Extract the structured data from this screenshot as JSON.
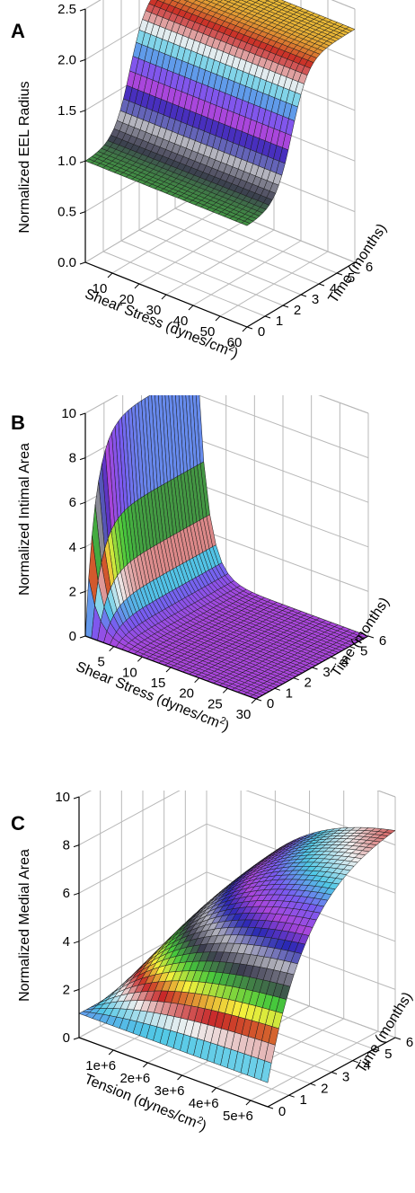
{
  "chart_data": [
    {
      "panel_label": "A",
      "type": "surface",
      "zlabel": "Normalized EEL Radius",
      "xlabel": "Shear Stress (dynes/cm",
      "xlabel_sup": "2",
      "xlabel_close": ")",
      "ylabel": "Time (months)",
      "x_ticks": [
        "10",
        "20",
        "30",
        "40",
        "50",
        "60"
      ],
      "y_ticks": [
        "0",
        "1",
        "2",
        "3",
        "4",
        "5",
        "6"
      ],
      "z_ticks": [
        "0.0",
        "0.5",
        "1.0",
        "1.5",
        "2.0",
        "2.5"
      ],
      "xlim": [
        0,
        60
      ],
      "ylim": [
        0,
        6
      ],
      "zlim": [
        0,
        2.5
      ],
      "surface": {
        "kind": "time_sigmoid",
        "base": 1.0,
        "peak": 2.3,
        "midpoint_months": 2.5,
        "steepness": 2.2
      }
    },
    {
      "panel_label": "B",
      "type": "surface",
      "zlabel": "Normalized Intimal Area",
      "xlabel": "Shear Stress (dynes/cm",
      "xlabel_sup": "2",
      "xlabel_close": ")",
      "ylabel": "Time (months)",
      "x_ticks": [
        "5",
        "10",
        "15",
        "20",
        "25",
        "30"
      ],
      "y_ticks": [
        "0",
        "1",
        "2",
        "3",
        "4",
        "5",
        "6"
      ],
      "z_ticks": [
        "0",
        "2",
        "4",
        "6",
        "8",
        "10"
      ],
      "xlim": [
        0,
        30
      ],
      "ylim": [
        0,
        6
      ],
      "zlim": [
        0,
        10
      ],
      "surface": {
        "kind": "shear_decay",
        "base": 0.0,
        "peak": 9.2,
        "decay_per_shear": 0.55,
        "time_rate": 1.8
      }
    },
    {
      "panel_label": "C",
      "type": "surface",
      "zlabel": "Normalized Medial Area",
      "xlabel": "Tension (dynes/cm",
      "xlabel_sup": "2",
      "xlabel_close": ")",
      "ylabel": "Time (months)",
      "x_ticks": [
        "1e+6",
        "2e+6",
        "3e+6",
        "4e+6",
        "5e+6"
      ],
      "y_ticks": [
        "0",
        "1",
        "2",
        "3",
        "4",
        "5",
        "6"
      ],
      "z_ticks": [
        "0",
        "2",
        "4",
        "6",
        "8",
        "10"
      ],
      "xlim": [
        0,
        5500000
      ],
      "ylim": [
        0,
        6
      ],
      "zlim": [
        0,
        10
      ],
      "surface": {
        "kind": "tension_growth",
        "base": 1.0,
        "peak": 9.3,
        "tension_rate": 0.45,
        "time_rate": 0.55
      }
    }
  ]
}
